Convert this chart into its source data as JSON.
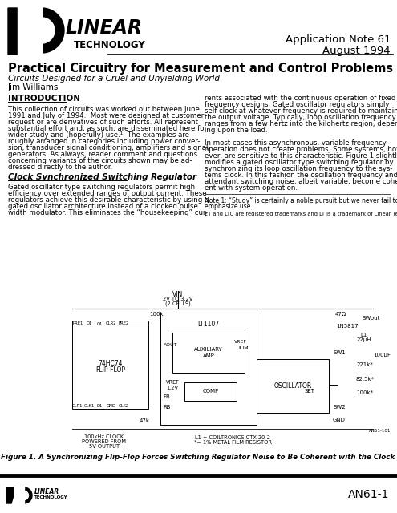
{
  "title_main": "Practical Circuitry for Measurement and Control Problems",
  "subtitle": "Circuits Designed for a Cruel and Unyielding World",
  "author": "Jim Williams",
  "app_note": "Application Note 61",
  "date": "August 1994",
  "page_num": "AN61-1",
  "section1_title": "INTRODUCTION",
  "section1_text_lines": [
    "This collection of circuits was worked out between June",
    "1991 and July of 1994.  Most were designed at customer",
    "request or are derivatives of such efforts. All represent",
    "substantial effort and, as such, are disseminated here for",
    "wider study and (hopefully) use.¹  The examples are",
    "roughly arranged in categories including power conver-",
    "sion, transducer signal conditioning, amplifiers and signal",
    "generators. As always, reader comment and questions",
    "concerning variants of the circuits shown may be ad-",
    "dressed directly to the author."
  ],
  "section2_title": "Clock Synchronized Switching Regulator",
  "section2_text_lines": [
    "Gated oscillator type switching regulators permit high",
    "efficiency over extended ranges of output current. These",
    "regulators achieve this desirable characteristic by using a",
    "gated oscillator architecture instead of a clocked pulse",
    "width modulator. This eliminates the “housekeeping” cur-"
  ],
  "right_col_lines": [
    "rents associated with the continuous operation of fixed",
    "frequency designs. Gated oscillator regulators simply",
    "self-clock at whatever frequency is required to maintain",
    "the output voltage. Typically, loop oscillation frequency",
    "ranges from a few hertz into the kilohertz region, depend-",
    "ing upon the load.",
    "",
    "In most cases this asynchronous, variable frequency",
    "operation does not create problems. Some systems, how-",
    "ever, are sensitive to this characteristic. Figure 1 slightly",
    "modifies a gated oscillator type switching regulator by",
    "synchronizing its loop oscillation frequency to the sys-",
    "tems clock. In this fashion the oscillation frequency and its",
    "attendant switching noise, albeit variable, become coher-",
    "ent with system operation."
  ],
  "note1_lines": [
    "Note 1: “Study” is certainly a noble pursuit but we never fail to",
    "emphasize use."
  ],
  "trademark": "£T and LTC are registered trademarks and LT is a trademark of Linear Technology Corporation.",
  "figure_caption": "Figure 1. A Synchronizing Flip-Flop Forces Switching Regulator Noise to Be Coherent with the Clock",
  "bg_color": "#ffffff",
  "text_color": "#000000"
}
